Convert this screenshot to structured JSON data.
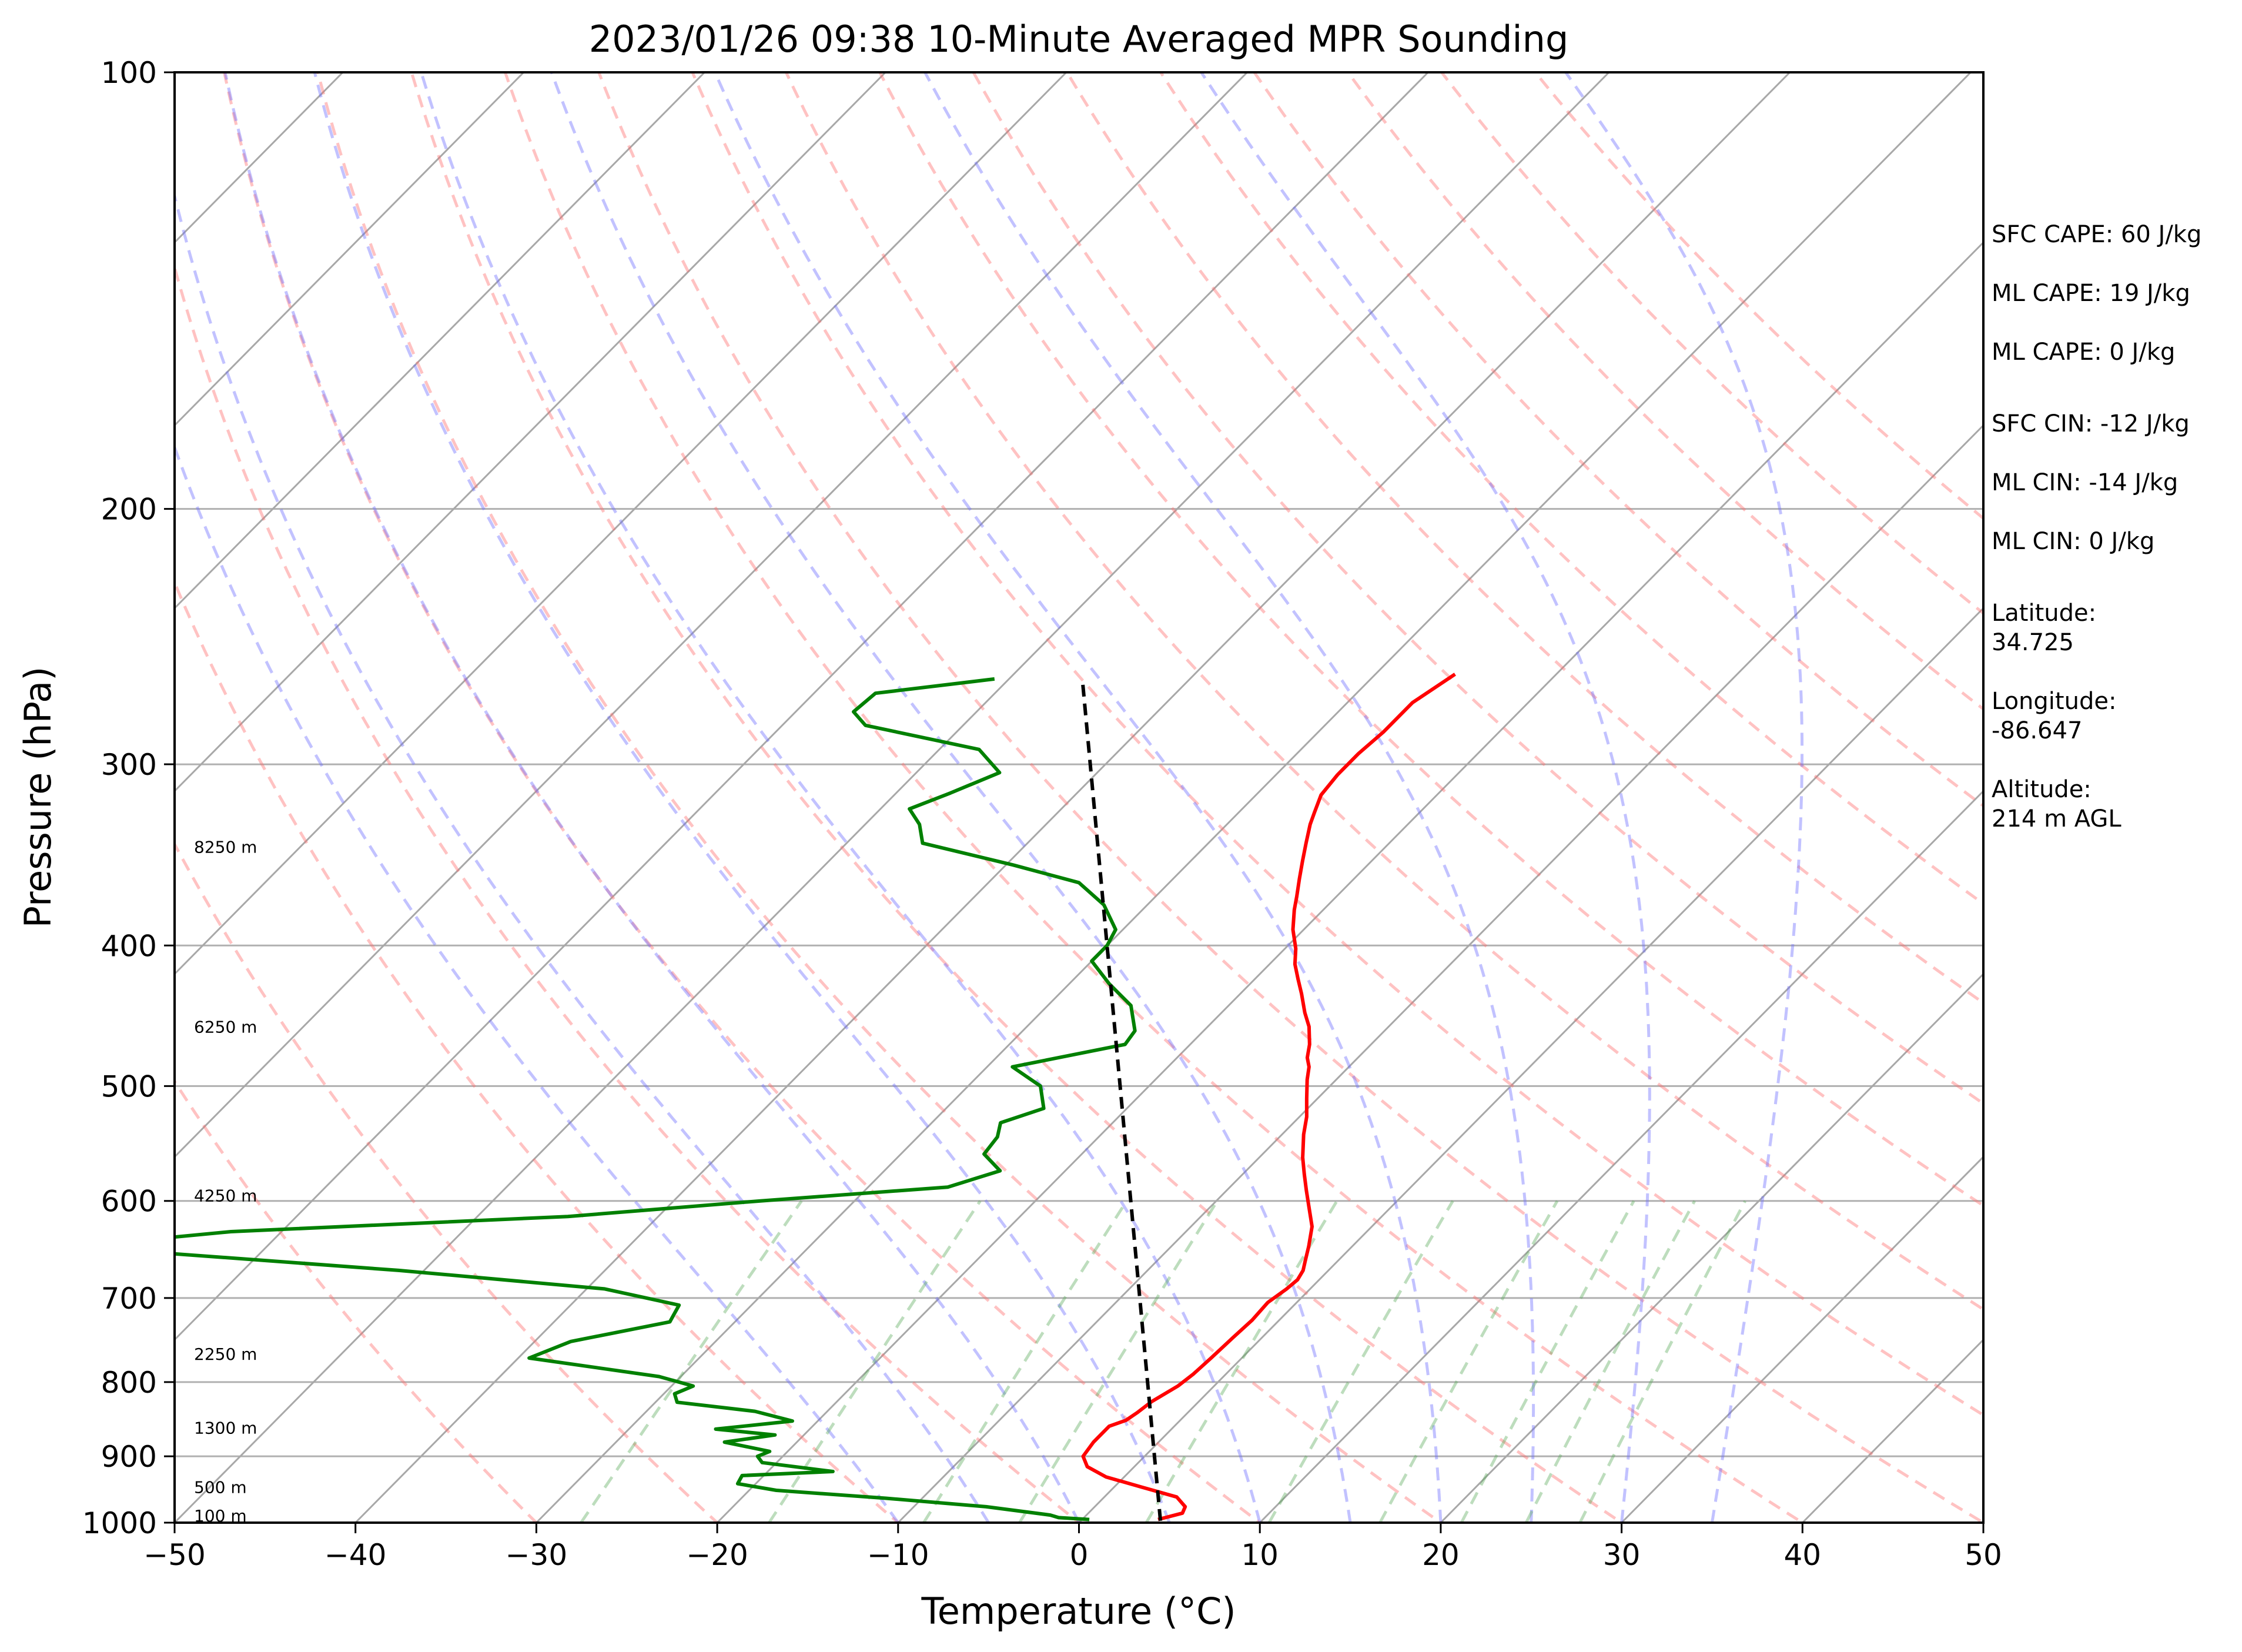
{
  "chart_data": {
    "type": "line",
    "title": "2023/01/26 09:38 10-Minute Averaged MPR Sounding",
    "xlabel": "Temperature (°C)",
    "ylabel": "Pressure (hPa)",
    "x_scale": "linear",
    "y_scale": "log",
    "xlim": [
      -50,
      50
    ],
    "ylim": [
      1000,
      100
    ],
    "x_ticks": [
      -50,
      -40,
      -30,
      -20,
      -10,
      0,
      10,
      20,
      30,
      40,
      50
    ],
    "x_tick_labels": [
      "−50",
      "−40",
      "−30",
      "−20",
      "−10",
      "0",
      "10",
      "20",
      "30",
      "40",
      "50"
    ],
    "y_ticks": [
      1000,
      900,
      800,
      700,
      600,
      500,
      400,
      300,
      200,
      100
    ],
    "y_tick_labels": [
      "1000",
      "900",
      "800",
      "700",
      "600",
      "500",
      "400",
      "300",
      "200",
      "100"
    ],
    "skew_deg_per_log_decade": 79.3,
    "isobar_grid": true,
    "isotherms": [
      -130,
      -120,
      -110,
      -100,
      -90,
      -80,
      -70,
      -60,
      -50,
      -40,
      -30,
      -20,
      -10,
      0,
      10,
      20,
      30,
      40,
      50
    ],
    "dry_adiabats_theta_c": [
      -30,
      -20,
      -10,
      0,
      10,
      20,
      30,
      40,
      50,
      60,
      70,
      80,
      90,
      100,
      110,
      120,
      130,
      140,
      150
    ],
    "moist_adiabats_surface_c": [
      -10,
      -5,
      0,
      5,
      10,
      15,
      20,
      25,
      30,
      35
    ],
    "mixing_ratio_lines_gkg": [
      0.4,
      1,
      2,
      3,
      5,
      8,
      12,
      16,
      20,
      24
    ],
    "series": [
      {
        "role": "temperature",
        "color": "#ff0000",
        "points": [
          [
            4.2,
            995
          ],
          [
            5.2,
            985
          ],
          [
            5.0,
            975
          ],
          [
            4.0,
            960
          ],
          [
            1.5,
            945
          ],
          [
            -1.0,
            930
          ],
          [
            -2.6,
            915
          ],
          [
            -3.4,
            900
          ],
          [
            -3.6,
            880
          ],
          [
            -3.6,
            858
          ],
          [
            -3.0,
            850
          ],
          [
            -2.8,
            840
          ],
          [
            -2.6,
            825
          ],
          [
            -2.0,
            805
          ],
          [
            -1.8,
            790
          ],
          [
            -1.7,
            770
          ],
          [
            -1.6,
            745
          ],
          [
            -1.5,
            725
          ],
          [
            -1.6,
            705
          ],
          [
            -1.3,
            690
          ],
          [
            -1.2,
            680
          ],
          [
            -1.4,
            670
          ],
          [
            -1.8,
            660
          ],
          [
            -2.4,
            645
          ],
          [
            -3.3,
            625
          ],
          [
            -4.6,
            605
          ],
          [
            -5.6,
            590
          ],
          [
            -6.6,
            575
          ],
          [
            -7.6,
            560
          ],
          [
            -8.8,
            540
          ],
          [
            -9.6,
            525
          ],
          [
            -10.6,
            510
          ],
          [
            -11.6,
            495
          ],
          [
            -12.2,
            485
          ],
          [
            -12.8,
            478
          ],
          [
            -13.4,
            468
          ],
          [
            -14.4,
            455
          ],
          [
            -15.4,
            445
          ],
          [
            -16.6,
            432
          ],
          [
            -17.6,
            422
          ],
          [
            -18.6,
            412
          ],
          [
            -19.4,
            402
          ],
          [
            -20.6,
            390
          ],
          [
            -21.6,
            378
          ],
          [
            -22.2,
            370
          ],
          [
            -23.0,
            360
          ],
          [
            -23.8,
            350
          ],
          [
            -24.6,
            340
          ],
          [
            -25.4,
            330
          ],
          [
            -25.8,
            324
          ],
          [
            -26.4,
            315
          ],
          [
            -26.6,
            305
          ],
          [
            -26.6,
            295
          ],
          [
            -26.4,
            285
          ],
          [
            -26.4,
            272
          ],
          [
            -25.6,
            260
          ]
        ]
      },
      {
        "role": "dewpoint",
        "color": "#008000",
        "points": [
          [
            0.4,
            995
          ],
          [
            -1.4,
            992
          ],
          [
            -2.0,
            988
          ],
          [
            -6.0,
            975
          ],
          [
            -12.0,
            962
          ],
          [
            -18.5,
            950
          ],
          [
            -21.0,
            940
          ],
          [
            -21.2,
            928
          ],
          [
            -16.4,
            922
          ],
          [
            -20.8,
            909
          ],
          [
            -21.4,
            900
          ],
          [
            -21.0,
            893
          ],
          [
            -24.0,
            880
          ],
          [
            -21.6,
            870
          ],
          [
            -25.2,
            862
          ],
          [
            -21.4,
            851
          ],
          [
            -24.0,
            838
          ],
          [
            -28.8,
            826
          ],
          [
            -29.4,
            815
          ],
          [
            -28.8,
            805
          ],
          [
            -31.2,
            793
          ],
          [
            -39.4,
            770
          ],
          [
            -38.0,
            750
          ],
          [
            -33.6,
            727
          ],
          [
            -34.0,
            708
          ],
          [
            -39.0,
            690
          ],
          [
            -51.4,
            670
          ],
          [
            -70.6,
            645
          ],
          [
            -62.8,
            630
          ],
          [
            -45.0,
            615
          ],
          [
            -35.2,
            600
          ],
          [
            -25.6,
            587
          ],
          [
            -23.6,
            572
          ],
          [
            -25.4,
            557
          ],
          [
            -25.6,
            542
          ],
          [
            -26.2,
            530
          ],
          [
            -24.6,
            518
          ],
          [
            -26.0,
            500
          ],
          [
            -28.6,
            485
          ],
          [
            -23.6,
            468
          ],
          [
            -23.8,
            458
          ],
          [
            -25.4,
            440
          ],
          [
            -27.8,
            425
          ],
          [
            -30.0,
            410
          ],
          [
            -30.0,
            400
          ],
          [
            -30.4,
            390
          ],
          [
            -32.4,
            375
          ],
          [
            -35.0,
            362
          ],
          [
            -39.6,
            352
          ],
          [
            -45.8,
            340
          ],
          [
            -47.0,
            330
          ],
          [
            -48.4,
            322
          ],
          [
            -47.0,
            314
          ],
          [
            -45.4,
            304
          ],
          [
            -47.8,
            293
          ],
          [
            -55.4,
            282
          ],
          [
            -56.8,
            276
          ],
          [
            -56.6,
            268
          ],
          [
            -50.8,
            262
          ]
        ]
      },
      {
        "role": "parcel",
        "color": "#000000",
        "dashed": true,
        "points": [
          [
            4.4,
            997
          ],
          [
            -45.8,
            263
          ]
        ]
      }
    ],
    "height_labels": [
      {
        "label": "100 m",
        "pressure": 989
      },
      {
        "label": "500 m",
        "pressure": 945
      },
      {
        "label": "1300 m",
        "pressure": 860
      },
      {
        "label": "2250 m",
        "pressure": 765
      },
      {
        "label": "4250 m",
        "pressure": 595
      },
      {
        "label": "6250 m",
        "pressure": 455
      },
      {
        "label": "8250 m",
        "pressure": 342
      }
    ],
    "annotations": [
      "SFC CAPE: 60 J/kg",
      "ML CAPE: 19 J/kg",
      "ML CAPE: 0 J/kg",
      "SFC CIN: -12 J/kg",
      "ML CIN: -14 J/kg",
      "ML CIN: 0 J/kg",
      "Latitude:",
      "34.725",
      "Longitude:",
      "-86.647",
      "Altitude:",
      "214 m AGL"
    ]
  }
}
